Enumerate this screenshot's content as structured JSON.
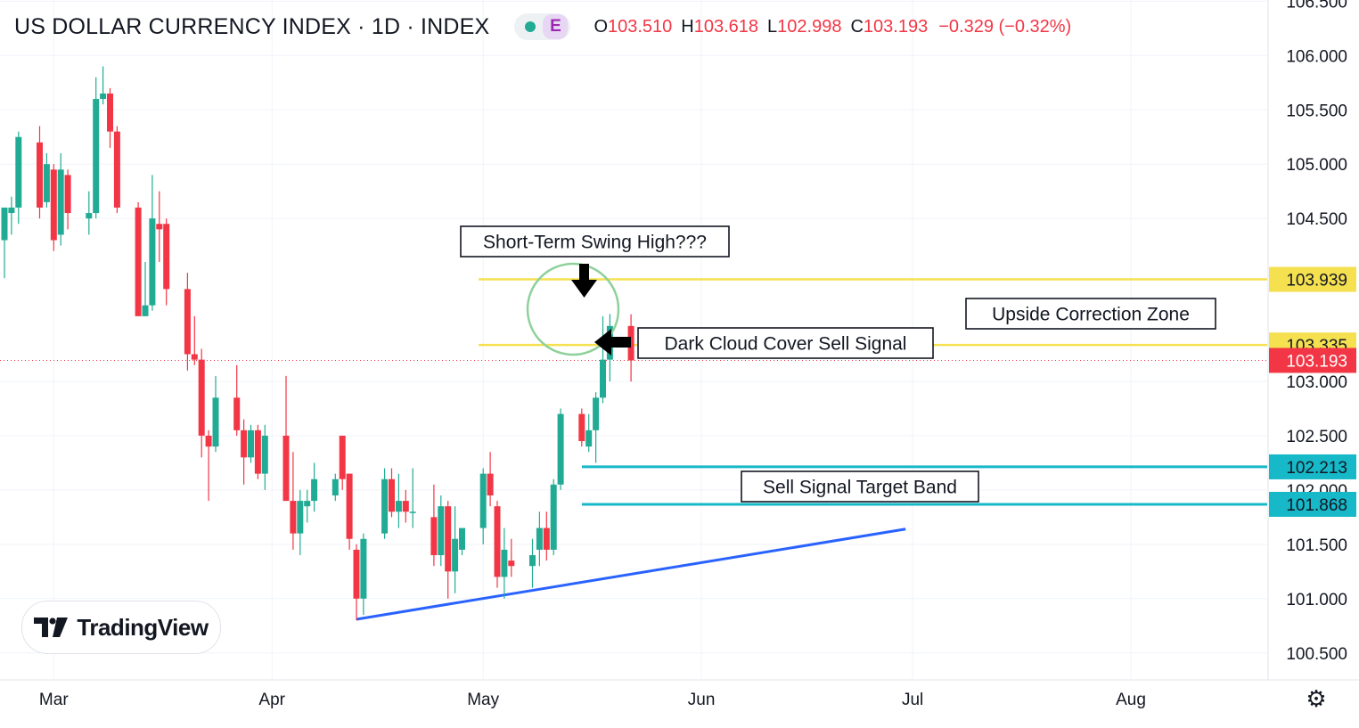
{
  "header": {
    "title": "US DOLLAR CURRENCY INDEX · 1D · INDEX",
    "badge_letter": "E",
    "ohlc": {
      "o_label": "O",
      "o_value": "103.510",
      "h_label": "H",
      "h_value": "103.618",
      "l_label": "L",
      "l_value": "102.998",
      "c_label": "C",
      "c_value": "103.193",
      "change": "−0.329 (−0.32%)"
    }
  },
  "logo": {
    "text": "TradingView"
  },
  "chart_data": {
    "type": "candlestick",
    "title": "US DOLLAR CURRENCY INDEX · 1D · INDEX",
    "y_axis": {
      "ticks": [
        "106.500",
        "106.000",
        "105.500",
        "105.000",
        "104.500",
        "103.000",
        "102.500",
        "102.000",
        "101.500",
        "101.000",
        "100.500"
      ],
      "range": [
        100.3,
        106.55
      ]
    },
    "x_axis": {
      "ticks": [
        "Mar",
        "Apr",
        "May",
        "Jun",
        "Jul",
        "Aug"
      ],
      "range": [
        "2023-02-22",
        "2023-08-31"
      ]
    },
    "colors": {
      "up": "#22ab94",
      "down": "#f23645",
      "yellow_line": "#f5e050",
      "cyan_line": "#17b8c8",
      "trend_line": "#2962ff",
      "circle": "#8fd19a"
    },
    "candles": [
      {
        "date": "2023-02-22",
        "o": 104.3,
        "h": 104.6,
        "l": 103.95,
        "c": 104.6
      },
      {
        "date": "2023-02-23",
        "o": 104.55,
        "h": 104.7,
        "l": 104.35,
        "c": 104.6
      },
      {
        "date": "2023-02-24",
        "o": 104.6,
        "h": 105.3,
        "l": 104.45,
        "c": 105.25
      },
      {
        "date": "2023-02-27",
        "o": 105.2,
        "h": 105.35,
        "l": 104.5,
        "c": 104.6
      },
      {
        "date": "2023-02-28",
        "o": 104.65,
        "h": 105.1,
        "l": 104.6,
        "c": 105.0
      },
      {
        "date": "2023-03-01",
        "o": 104.95,
        "h": 105.0,
        "l": 104.2,
        "c": 104.3
      },
      {
        "date": "2023-03-02",
        "o": 104.35,
        "h": 105.1,
        "l": 104.25,
        "c": 104.95
      },
      {
        "date": "2023-03-03",
        "o": 104.9,
        "h": 104.95,
        "l": 104.4,
        "c": 104.55
      },
      {
        "date": "2023-03-06",
        "o": 104.5,
        "h": 104.75,
        "l": 104.35,
        "c": 104.55
      },
      {
        "date": "2023-03-07",
        "o": 104.55,
        "h": 105.8,
        "l": 104.5,
        "c": 105.6
      },
      {
        "date": "2023-03-08",
        "o": 105.6,
        "h": 105.9,
        "l": 105.55,
        "c": 105.65
      },
      {
        "date": "2023-03-09",
        "o": 105.65,
        "h": 105.7,
        "l": 105.15,
        "c": 105.3
      },
      {
        "date": "2023-03-10",
        "o": 105.3,
        "h": 105.35,
        "l": 104.55,
        "c": 104.6
      },
      {
        "date": "2023-03-13",
        "o": 104.6,
        "h": 104.65,
        "l": 103.65,
        "c": 103.6
      },
      {
        "date": "2023-03-14",
        "o": 103.6,
        "h": 104.1,
        "l": 103.6,
        "c": 103.7
      },
      {
        "date": "2023-03-15",
        "o": 103.7,
        "h": 104.9,
        "l": 103.65,
        "c": 104.5
      },
      {
        "date": "2023-03-16",
        "o": 104.45,
        "h": 104.75,
        "l": 104.1,
        "c": 104.4
      },
      {
        "date": "2023-03-17",
        "o": 104.45,
        "h": 104.5,
        "l": 103.7,
        "c": 103.85
      },
      {
        "date": "2023-03-20",
        "o": 103.85,
        "h": 104.0,
        "l": 103.1,
        "c": 103.25
      },
      {
        "date": "2023-03-21",
        "o": 103.25,
        "h": 103.6,
        "l": 103.15,
        "c": 103.2
      },
      {
        "date": "2023-03-22",
        "o": 103.2,
        "h": 103.3,
        "l": 102.3,
        "c": 102.5
      },
      {
        "date": "2023-03-23",
        "o": 102.5,
        "h": 102.55,
        "l": 101.9,
        "c": 102.4
      },
      {
        "date": "2023-03-24",
        "o": 102.4,
        "h": 103.05,
        "l": 102.35,
        "c": 102.85
      },
      {
        "date": "2023-03-27",
        "o": 102.85,
        "h": 103.15,
        "l": 102.5,
        "c": 102.55
      },
      {
        "date": "2023-03-28",
        "o": 102.55,
        "h": 102.65,
        "l": 102.05,
        "c": 102.3
      },
      {
        "date": "2023-03-29",
        "o": 102.3,
        "h": 102.6,
        "l": 102.25,
        "c": 102.55
      },
      {
        "date": "2023-03-30",
        "o": 102.55,
        "h": 102.6,
        "l": 102.1,
        "c": 102.15
      },
      {
        "date": "2023-03-31",
        "o": 102.15,
        "h": 102.6,
        "l": 102.0,
        "c": 102.5
      },
      {
        "date": "2023-04-03",
        "o": 102.5,
        "h": 103.05,
        "l": 101.9,
        "c": 101.9
      },
      {
        "date": "2023-04-04",
        "o": 101.9,
        "h": 102.35,
        "l": 101.45,
        "c": 101.6
      },
      {
        "date": "2023-04-05",
        "o": 101.6,
        "h": 102.0,
        "l": 101.4,
        "c": 101.9
      },
      {
        "date": "2023-04-06",
        "o": 101.85,
        "h": 102.0,
        "l": 101.7,
        "c": 101.9
      },
      {
        "date": "2023-04-07",
        "o": 101.9,
        "h": 102.25,
        "l": 101.8,
        "c": 102.1
      },
      {
        "date": "2023-04-10",
        "o": 101.95,
        "h": 102.15,
        "l": 101.9,
        "c": 102.1
      },
      {
        "date": "2023-04-11",
        "o": 102.5,
        "h": 102.5,
        "l": 102.0,
        "c": 102.1
      },
      {
        "date": "2023-04-12",
        "o": 102.15,
        "h": 102.15,
        "l": 101.45,
        "c": 101.55
      },
      {
        "date": "2023-04-13",
        "o": 101.45,
        "h": 101.5,
        "l": 100.8,
        "c": 101.0
      },
      {
        "date": "2023-04-14",
        "o": 101.0,
        "h": 101.6,
        "l": 100.85,
        "c": 101.55
      },
      {
        "date": "2023-04-17",
        "o": 101.6,
        "h": 102.2,
        "l": 101.55,
        "c": 102.1
      },
      {
        "date": "2023-04-18",
        "o": 102.1,
        "h": 102.2,
        "l": 101.75,
        "c": 101.8
      },
      {
        "date": "2023-04-19",
        "o": 101.8,
        "h": 102.15,
        "l": 101.65,
        "c": 101.9
      },
      {
        "date": "2023-04-20",
        "o": 101.9,
        "h": 102.0,
        "l": 101.7,
        "c": 101.8
      },
      {
        "date": "2023-04-21",
        "o": 101.8,
        "h": 102.2,
        "l": 101.65,
        "c": 101.8
      },
      {
        "date": "2023-04-24",
        "o": 101.75,
        "h": 102.05,
        "l": 101.3,
        "c": 101.4
      },
      {
        "date": "2023-04-25",
        "o": 101.4,
        "h": 101.95,
        "l": 101.3,
        "c": 101.85
      },
      {
        "date": "2023-04-26",
        "o": 101.85,
        "h": 101.9,
        "l": 101.0,
        "c": 101.25
      },
      {
        "date": "2023-04-27",
        "o": 101.25,
        "h": 101.85,
        "l": 101.05,
        "c": 101.55
      },
      {
        "date": "2023-04-28",
        "o": 101.45,
        "h": 101.6,
        "l": 101.4,
        "c": 101.65
      },
      {
        "date": "2023-05-01",
        "o": 101.65,
        "h": 102.2,
        "l": 101.5,
        "c": 102.15
      },
      {
        "date": "2023-05-02",
        "o": 102.15,
        "h": 102.35,
        "l": 101.85,
        "c": 101.95
      },
      {
        "date": "2023-05-03",
        "o": 101.85,
        "h": 101.9,
        "l": 101.1,
        "c": 101.2
      },
      {
        "date": "2023-05-04",
        "o": 101.2,
        "h": 101.65,
        "l": 101.0,
        "c": 101.45
      },
      {
        "date": "2023-05-05",
        "o": 101.35,
        "h": 101.55,
        "l": 101.2,
        "c": 101.3
      },
      {
        "date": "2023-05-08",
        "o": 101.3,
        "h": 101.55,
        "l": 101.1,
        "c": 101.4
      },
      {
        "date": "2023-05-09",
        "o": 101.45,
        "h": 101.8,
        "l": 101.3,
        "c": 101.65
      },
      {
        "date": "2023-05-10",
        "o": 101.65,
        "h": 101.8,
        "l": 101.35,
        "c": 101.45
      },
      {
        "date": "2023-05-11",
        "o": 101.45,
        "h": 102.1,
        "l": 101.4,
        "c": 102.05
      },
      {
        "date": "2023-05-12",
        "o": 102.05,
        "h": 102.75,
        "l": 102.0,
        "c": 102.7
      },
      {
        "date": "2023-05-15",
        "o": 102.7,
        "h": 102.75,
        "l": 102.4,
        "c": 102.45
      },
      {
        "date": "2023-05-16",
        "o": 102.4,
        "h": 102.7,
        "l": 102.35,
        "c": 102.55
      },
      {
        "date": "2023-05-17",
        "o": 102.55,
        "h": 102.9,
        "l": 102.25,
        "c": 102.85
      },
      {
        "date": "2023-05-18",
        "o": 102.85,
        "h": 103.6,
        "l": 102.8,
        "c": 103.2
      },
      {
        "date": "2023-05-19",
        "o": 103.2,
        "h": 103.62,
        "l": 103.0,
        "c": 103.51
      },
      {
        "date": "2023-05-22",
        "o": 103.51,
        "h": 103.618,
        "l": 102.998,
        "c": 103.193
      }
    ],
    "horizontal_levels": [
      {
        "value": 103.939,
        "label": "103.939",
        "color": "yellow"
      },
      {
        "value": 103.335,
        "label": "103.335",
        "color": "yellow"
      },
      {
        "value": 102.213,
        "label": "102.213",
        "color": "cyan"
      },
      {
        "value": 101.868,
        "label": "101.868",
        "color": "cyan"
      }
    ],
    "last_price": {
      "value": 103.193,
      "label": "103.193"
    },
    "trend_line": {
      "from": {
        "date": "2023-04-13",
        "value": 100.81
      },
      "to": {
        "date": "2023-06-30",
        "value": 101.64
      }
    },
    "annotations": {
      "swing_high": "Short-Term Swing High???",
      "dark_cloud": "Dark Cloud Cover Sell Signal",
      "upside_zone": "Upside Correction Zone",
      "target_band": "Sell Signal Target Band"
    }
  }
}
